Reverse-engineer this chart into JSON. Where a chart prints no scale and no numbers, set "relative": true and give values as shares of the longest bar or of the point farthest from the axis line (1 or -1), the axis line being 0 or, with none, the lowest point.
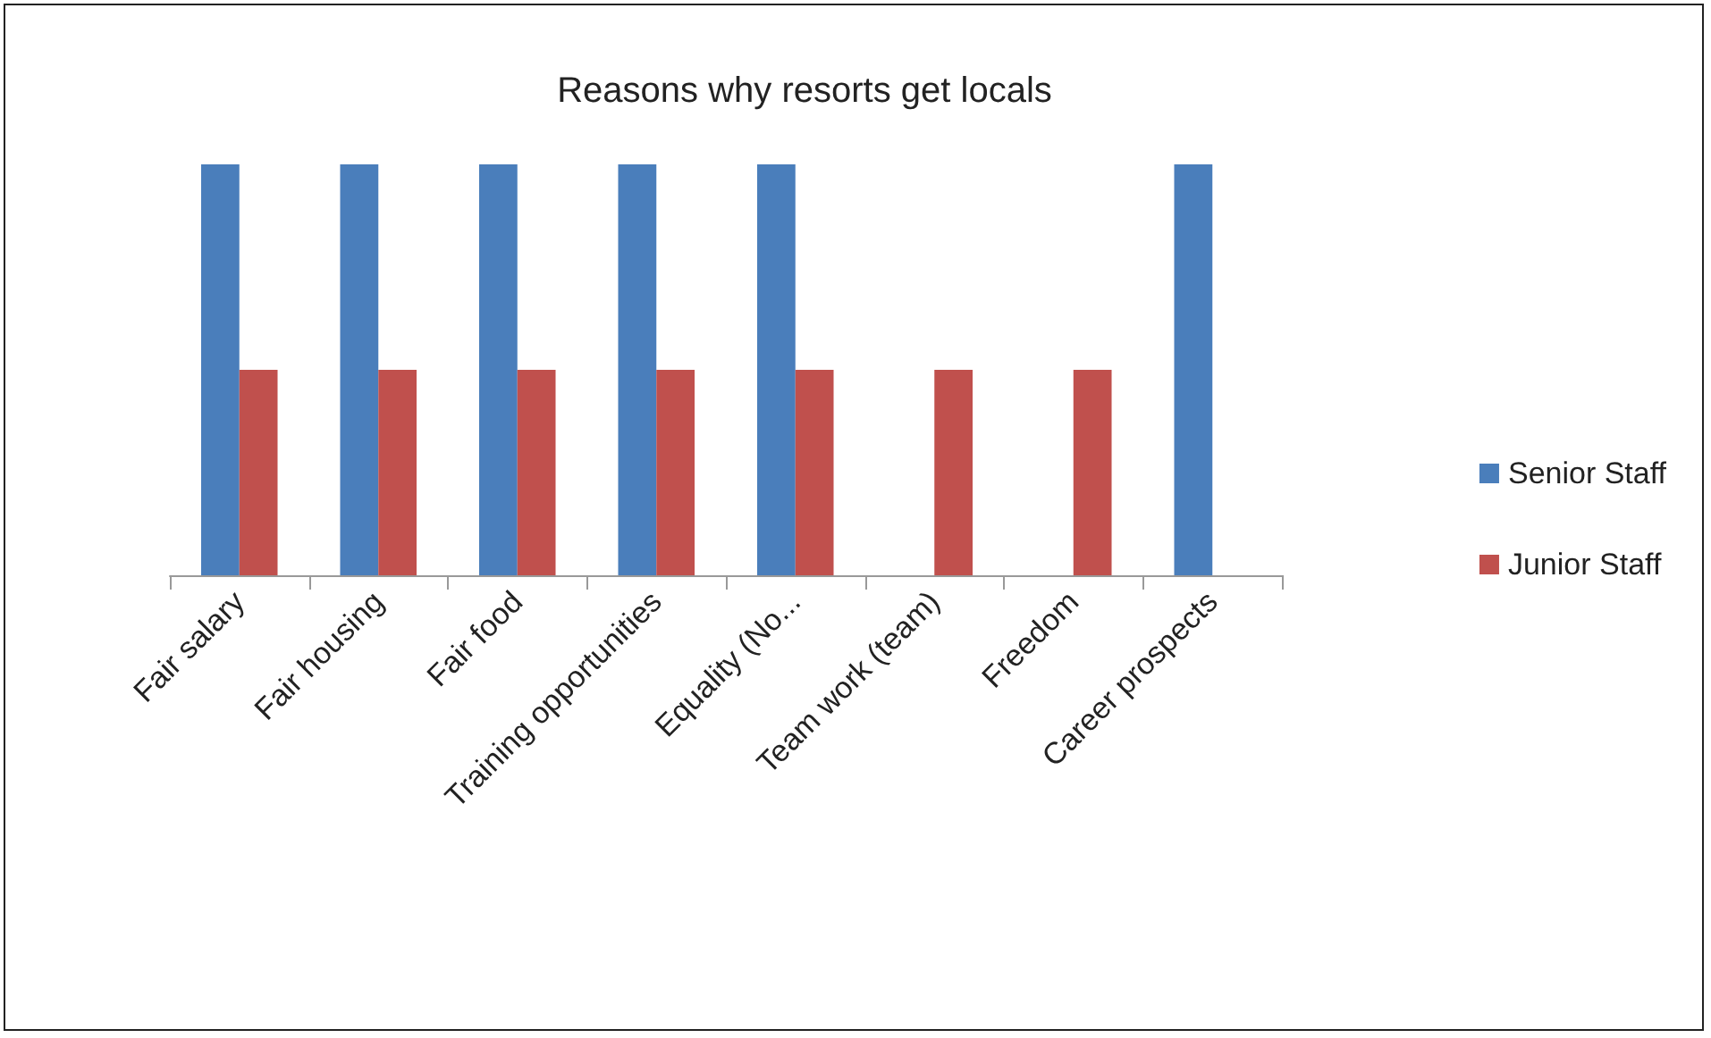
{
  "chart_data": {
    "type": "bar",
    "title": "Reasons why resorts get locals",
    "categories": [
      "Fair salary",
      "Fair housing",
      "Fair food",
      "Training opportunities",
      "Equality (No...",
      "Team work (team)",
      "Freedom",
      "Career prospects"
    ],
    "series": [
      {
        "name": "Senior Staff",
        "color": "#4a7ebb",
        "values": [
          1,
          1,
          1,
          1,
          1,
          null,
          null,
          1
        ]
      },
      {
        "name": "Junior Staff",
        "color": "#c0504d",
        "values": [
          0.5,
          0.5,
          0.5,
          0.5,
          0.5,
          0.5,
          0.5,
          null
        ]
      }
    ],
    "relative": true,
    "legend": "right",
    "grid": false
  }
}
